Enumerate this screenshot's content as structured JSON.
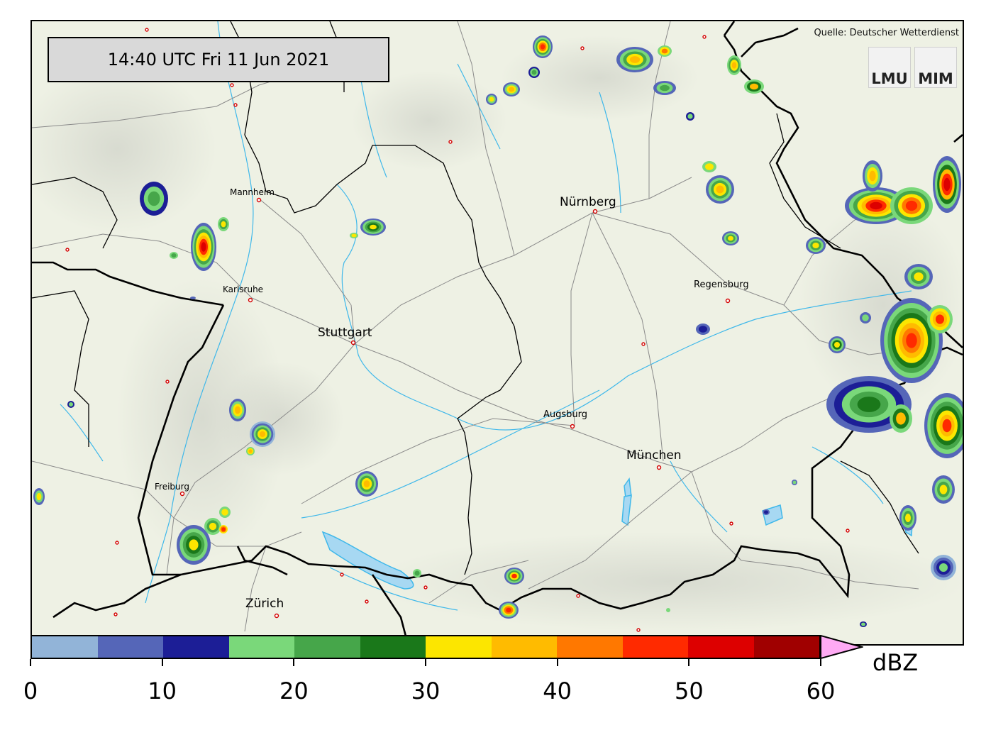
{
  "timestamp": "14:40 UTC  Fri 11 Jun 2021",
  "source": "Quelle: Deutscher Wetterdienst",
  "logos": {
    "lmu": "LMU",
    "mim": "MIM"
  },
  "map": {
    "type": "radar-reflectivity",
    "background": "#eef1e4",
    "border_color": "#000000",
    "river_color": "#3fb8ea",
    "road_color": "#8a8a8a"
  },
  "cities": {
    "mannheim": "Mannheim",
    "karlsruhe": "Karlsruhe",
    "stuttgart": "Stuttgart",
    "freiburg": "Freiburg",
    "zurich": "Zürich",
    "nurnberg": "Nürnberg",
    "regensburg": "Regensburg",
    "augsburg": "Augsburg",
    "munchen": "München"
  },
  "colorbar": {
    "unit": "dBZ",
    "min": 0,
    "max": 60,
    "step": 5,
    "extend": "max",
    "colors": [
      "#92b4d8",
      "#5566b8",
      "#1c1e96",
      "#7ad87a",
      "#46a64a",
      "#1a781a",
      "#fce600",
      "#ffbb00",
      "#ff7800",
      "#ff2a00",
      "#dd0000",
      "#a00000"
    ],
    "over_color": "#ffaaf4",
    "ticks": [
      "0",
      "10",
      "20",
      "30",
      "40",
      "50",
      "60"
    ]
  },
  "precip_cells_dbz": [
    {
      "area": "north of Karlsruhe",
      "max_dbz": 55
    },
    {
      "area": "Nürnberg north",
      "max_dbz": 40
    },
    {
      "area": "east Bavarian Forest",
      "max_dbz": 55
    },
    {
      "area": "Alps near Lindau",
      "max_dbz": 45
    },
    {
      "area": "Black Forest",
      "max_dbz": 35
    }
  ]
}
